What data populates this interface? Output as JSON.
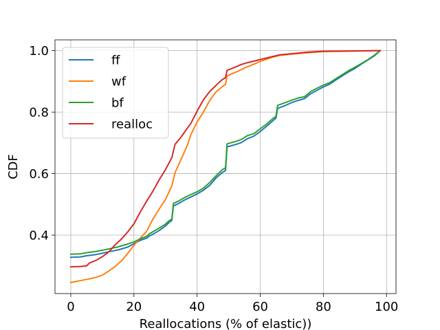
{
  "chart_data": {
    "type": "line",
    "title": "",
    "xlabel": "Reallocations (% of elastic))",
    "ylabel": "CDF",
    "xlim": [
      -5,
      103
    ],
    "ylim": [
      0.21,
      1.035
    ],
    "xticks": [
      0,
      20,
      40,
      60,
      80,
      100
    ],
    "yticks": [
      0.4,
      0.6,
      0.8,
      1.0
    ],
    "xtick_labels": [
      "0",
      "20",
      "40",
      "60",
      "80",
      "100"
    ],
    "ytick_labels": [
      "0.4",
      "0.6",
      "0.8",
      "1.0"
    ],
    "grid": true,
    "legend_position": "top-left",
    "series": [
      {
        "name": "ff",
        "color": "#1f77b4",
        "points": [
          [
            0,
            0.328
          ],
          [
            3,
            0.329
          ],
          [
            5,
            0.333
          ],
          [
            8,
            0.337
          ],
          [
            10,
            0.341
          ],
          [
            12,
            0.346
          ],
          [
            15,
            0.352
          ],
          [
            18,
            0.361
          ],
          [
            20,
            0.372
          ],
          [
            22,
            0.383
          ],
          [
            24,
            0.39
          ],
          [
            25,
            0.398
          ],
          [
            26,
            0.403
          ],
          [
            28,
            0.415
          ],
          [
            30,
            0.43
          ],
          [
            31,
            0.44
          ],
          [
            32,
            0.448
          ],
          [
            32.5,
            0.495
          ],
          [
            34,
            0.502
          ],
          [
            36,
            0.514
          ],
          [
            38,
            0.524
          ],
          [
            40,
            0.534
          ],
          [
            42,
            0.546
          ],
          [
            44,
            0.562
          ],
          [
            46,
            0.586
          ],
          [
            48,
            0.604
          ],
          [
            49,
            0.61
          ],
          [
            49.5,
            0.687
          ],
          [
            52,
            0.694
          ],
          [
            54,
            0.701
          ],
          [
            56,
            0.714
          ],
          [
            58,
            0.722
          ],
          [
            60,
            0.737
          ],
          [
            62,
            0.754
          ],
          [
            64,
            0.772
          ],
          [
            65,
            0.781
          ],
          [
            65.5,
            0.812
          ],
          [
            68,
            0.822
          ],
          [
            70,
            0.831
          ],
          [
            72,
            0.838
          ],
          [
            74,
            0.844
          ],
          [
            76,
            0.86
          ],
          [
            78,
            0.871
          ],
          [
            80,
            0.882
          ],
          [
            82,
            0.891
          ],
          [
            84,
            0.905
          ],
          [
            86,
            0.918
          ],
          [
            88,
            0.931
          ],
          [
            90,
            0.942
          ],
          [
            92,
            0.956
          ],
          [
            94,
            0.969
          ],
          [
            96,
            0.982
          ],
          [
            98,
            1.0
          ]
        ]
      },
      {
        "name": "wf",
        "color": "#ff7f0e",
        "points": [
          [
            0,
            0.246
          ],
          [
            2,
            0.25
          ],
          [
            4,
            0.254
          ],
          [
            6,
            0.258
          ],
          [
            8,
            0.263
          ],
          [
            10,
            0.27
          ],
          [
            12,
            0.283
          ],
          [
            14,
            0.298
          ],
          [
            16,
            0.316
          ],
          [
            18,
            0.34
          ],
          [
            20,
            0.367
          ],
          [
            22,
            0.39
          ],
          [
            24,
            0.412
          ],
          [
            26,
            0.452
          ],
          [
            28,
            0.485
          ],
          [
            30,
            0.516
          ],
          [
            32,
            0.56
          ],
          [
            33,
            0.603
          ],
          [
            35,
            0.648
          ],
          [
            37,
            0.694
          ],
          [
            38,
            0.726
          ],
          [
            40,
            0.768
          ],
          [
            42,
            0.8
          ],
          [
            44,
            0.838
          ],
          [
            46,
            0.866
          ],
          [
            48,
            0.883
          ],
          [
            49,
            0.89
          ],
          [
            49.5,
            0.918
          ],
          [
            52,
            0.929
          ],
          [
            54,
            0.938
          ],
          [
            56,
            0.948
          ],
          [
            58,
            0.956
          ],
          [
            60,
            0.965
          ],
          [
            62,
            0.972
          ],
          [
            64,
            0.979
          ],
          [
            66,
            0.984
          ],
          [
            70,
            0.989
          ],
          [
            75,
            0.993
          ],
          [
            80,
            0.997
          ],
          [
            98,
            1.0
          ]
        ]
      },
      {
        "name": "bf",
        "color": "#2ca02c",
        "points": [
          [
            0,
            0.338
          ],
          [
            3,
            0.339
          ],
          [
            5,
            0.343
          ],
          [
            8,
            0.347
          ],
          [
            10,
            0.351
          ],
          [
            12,
            0.355
          ],
          [
            15,
            0.362
          ],
          [
            18,
            0.371
          ],
          [
            20,
            0.378
          ],
          [
            22,
            0.388
          ],
          [
            24,
            0.396
          ],
          [
            25,
            0.405
          ],
          [
            26,
            0.411
          ],
          [
            28,
            0.423
          ],
          [
            30,
            0.436
          ],
          [
            31,
            0.446
          ],
          [
            32,
            0.452
          ],
          [
            32.5,
            0.503
          ],
          [
            34,
            0.51
          ],
          [
            36,
            0.522
          ],
          [
            38,
            0.532
          ],
          [
            40,
            0.541
          ],
          [
            42,
            0.553
          ],
          [
            44,
            0.571
          ],
          [
            46,
            0.593
          ],
          [
            48,
            0.613
          ],
          [
            49,
            0.619
          ],
          [
            49.5,
            0.697
          ],
          [
            52,
            0.704
          ],
          [
            54,
            0.711
          ],
          [
            56,
            0.724
          ],
          [
            58,
            0.73
          ],
          [
            60,
            0.746
          ],
          [
            62,
            0.761
          ],
          [
            64,
            0.779
          ],
          [
            65,
            0.787
          ],
          [
            65.5,
            0.822
          ],
          [
            68,
            0.831
          ],
          [
            70,
            0.839
          ],
          [
            72,
            0.846
          ],
          [
            74,
            0.85
          ],
          [
            76,
            0.867
          ],
          [
            78,
            0.878
          ],
          [
            80,
            0.888
          ],
          [
            82,
            0.896
          ],
          [
            84,
            0.909
          ],
          [
            86,
            0.922
          ],
          [
            88,
            0.935
          ],
          [
            90,
            0.946
          ],
          [
            92,
            0.958
          ],
          [
            94,
            0.97
          ],
          [
            96,
            0.984
          ],
          [
            98,
            1.0
          ]
        ]
      },
      {
        "name": "realloc",
        "color": "#d62728",
        "points": [
          [
            0,
            0.297
          ],
          [
            3,
            0.298
          ],
          [
            5,
            0.3
          ],
          [
            6,
            0.31
          ],
          [
            8,
            0.318
          ],
          [
            10,
            0.33
          ],
          [
            12,
            0.345
          ],
          [
            14,
            0.368
          ],
          [
            16,
            0.387
          ],
          [
            18,
            0.41
          ],
          [
            20,
            0.437
          ],
          [
            22,
            0.475
          ],
          [
            24,
            0.51
          ],
          [
            26,
            0.543
          ],
          [
            28,
            0.58
          ],
          [
            30,
            0.613
          ],
          [
            32,
            0.652
          ],
          [
            33,
            0.695
          ],
          [
            35,
            0.72
          ],
          [
            37,
            0.749
          ],
          [
            38,
            0.763
          ],
          [
            40,
            0.803
          ],
          [
            42,
            0.84
          ],
          [
            44,
            0.867
          ],
          [
            46,
            0.887
          ],
          [
            48,
            0.906
          ],
          [
            49,
            0.912
          ],
          [
            49.5,
            0.936
          ],
          [
            52,
            0.946
          ],
          [
            54,
            0.955
          ],
          [
            56,
            0.961
          ],
          [
            58,
            0.966
          ],
          [
            60,
            0.971
          ],
          [
            62,
            0.976
          ],
          [
            64,
            0.981
          ],
          [
            66,
            0.986
          ],
          [
            70,
            0.99
          ],
          [
            75,
            0.995
          ],
          [
            80,
            0.998
          ],
          [
            98,
            1.0
          ]
        ]
      }
    ]
  }
}
